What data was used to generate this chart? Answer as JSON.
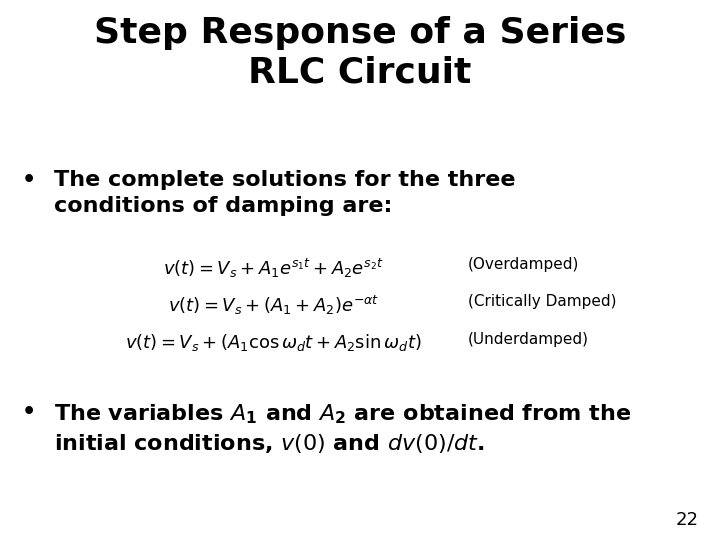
{
  "title_line1": "Step Response of a Series",
  "title_line2": "RLC Circuit",
  "title_fontsize": 26,
  "bg_color": "#ffffff",
  "text_color": "#000000",
  "bullet1_text": "The complete solutions for the three\nconditions of damping are:",
  "bullet1_fontsize": 16,
  "eq_fontsize": 13,
  "label_fontsize": 11,
  "bullet2_fontsize": 16,
  "page_number": "22",
  "page_fontsize": 13
}
